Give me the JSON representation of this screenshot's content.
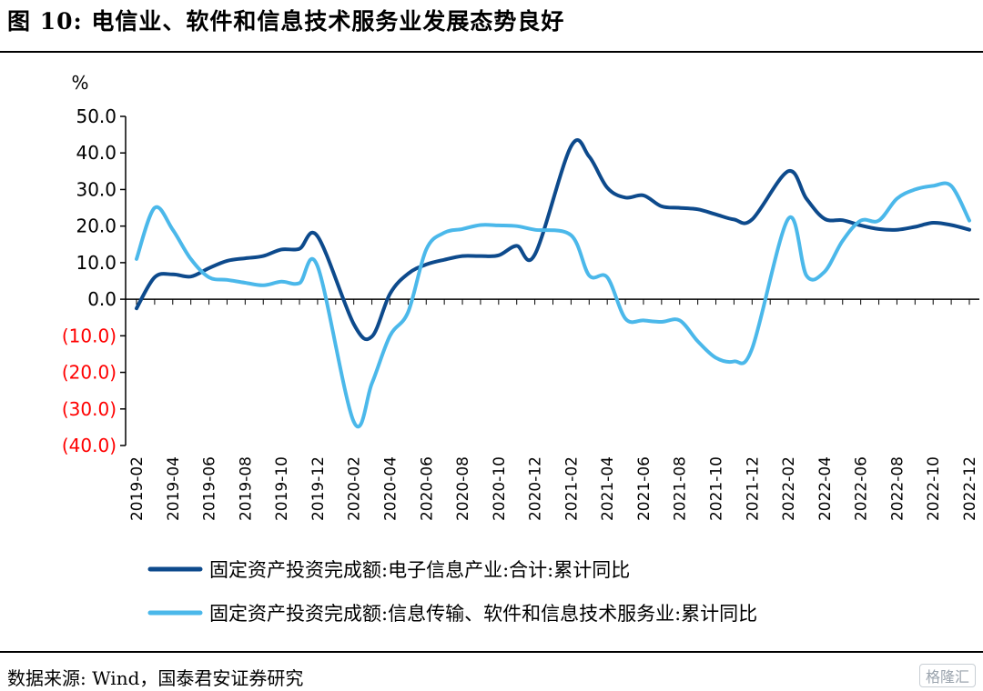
{
  "header": {
    "title": "图 10: 电信业、软件和信息技术服务业发展态势良好"
  },
  "footer": {
    "source": "数据来源: Wind，国泰君安证券研究",
    "watermark": "格隆汇"
  },
  "chart_data": {
    "type": "line",
    "title": "",
    "ylabel": "%",
    "xlabel": "",
    "ylim": [
      -40,
      50
    ],
    "yticks": [
      50,
      40,
      30,
      20,
      10,
      0,
      -10,
      -20,
      -30,
      -40
    ],
    "ytick_labels": [
      "50.0",
      "40.0",
      "30.0",
      "20.0",
      "10.0",
      "0.0",
      "(10.0)",
      "(20.0)",
      "(30.0)",
      "(40.0)"
    ],
    "negative_tick_color": "#ff0000",
    "x": [
      "2019-02",
      "2019-03",
      "2019-04",
      "2019-05",
      "2019-06",
      "2019-07",
      "2019-08",
      "2019-09",
      "2019-10",
      "2019-11",
      "2019-12",
      "2020-01",
      "2020-02",
      "2020-03",
      "2020-04",
      "2020-05",
      "2020-06",
      "2020-07",
      "2020-08",
      "2020-09",
      "2020-10",
      "2020-11",
      "2020-12",
      "2021-01",
      "2021-02",
      "2021-03",
      "2021-04",
      "2021-05",
      "2021-06",
      "2021-07",
      "2021-08",
      "2021-09",
      "2021-10",
      "2021-11",
      "2021-12",
      "2022-01",
      "2022-02",
      "2022-03",
      "2022-04",
      "2022-05",
      "2022-06",
      "2022-07",
      "2022-08",
      "2022-09",
      "2022-10",
      "2022-11",
      "2022-12"
    ],
    "xtick_labels": [
      "2019-02",
      "2019-04",
      "2019-06",
      "2019-08",
      "2019-10",
      "2019-12",
      "2020-02",
      "2020-04",
      "2020-06",
      "2020-08",
      "2020-10",
      "2020-12",
      "2021-02",
      "2021-04",
      "2021-06",
      "2021-08",
      "2021-10",
      "2021-12",
      "2022-02",
      "2022-04",
      "2022-06",
      "2022-08",
      "2022-10",
      "2022-12"
    ],
    "legend_position": "bottom",
    "grid": false,
    "series": [
      {
        "name": "固定资产投资完成额:电子信息产业:合计:累计同比",
        "color": "#0d4a8c",
        "values": [
          -2.5,
          6.0,
          6.8,
          6.2,
          8.5,
          10.5,
          11.2,
          11.8,
          13.6,
          13.8,
          17.2,
          null,
          -6.8,
          -10.2,
          1.5,
          7.0,
          9.5,
          10.8,
          11.8,
          11.8,
          12.0,
          14.6,
          12.2,
          null,
          41.8,
          39.0,
          30.5,
          27.8,
          28.4,
          25.4,
          25.0,
          24.6,
          23.2,
          21.8,
          21.8,
          null,
          35.0,
          27.5,
          22.0,
          21.6,
          20.2,
          19.2,
          19.0,
          19.8,
          20.9,
          20.3,
          19.0
        ]
      },
      {
        "name": "固定资产投资完成额:信息传输、软件和信息技术服务业:累计同比",
        "color": "#4bb8ea",
        "values": [
          11.0,
          25.0,
          19.0,
          11.0,
          6.0,
          5.3,
          4.5,
          3.8,
          4.8,
          4.4,
          9.0,
          null,
          -33.5,
          -23.0,
          -10.0,
          -3.5,
          13.6,
          18.2,
          19.2,
          20.3,
          20.2,
          20.0,
          19.0,
          null,
          17.5,
          6.5,
          6.0,
          -5.3,
          -5.8,
          -6.2,
          -5.8,
          -11.5,
          -16.0,
          -17.0,
          -13.5,
          null,
          22.0,
          6.5,
          7.5,
          16.0,
          21.5,
          21.5,
          27.5,
          30.0,
          31.0,
          31.0,
          21.5
        ]
      }
    ]
  }
}
